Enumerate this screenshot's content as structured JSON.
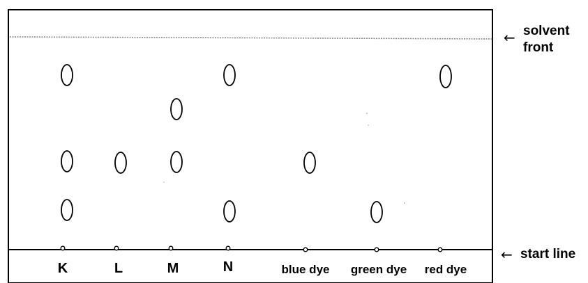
{
  "diagram": {
    "solvent_front_label": [
      "solvent",
      "front"
    ],
    "start_line_label": "start line",
    "arrow_glyph": "←",
    "colors": {
      "ink": "#000000",
      "paper": "#ffffff",
      "front_line": "#8a8a8a"
    },
    "lanes": [
      {
        "id": "K",
        "label": "K",
        "spot_count": 3
      },
      {
        "id": "L",
        "label": "L",
        "spot_count": 1
      },
      {
        "id": "M",
        "label": "M",
        "spot_count": 2
      },
      {
        "id": "N",
        "label": "N",
        "spot_count": 2
      },
      {
        "id": "blue",
        "label": "blue dye",
        "spot_count": 1
      },
      {
        "id": "green",
        "label": "green dye",
        "spot_count": 1
      },
      {
        "id": "red",
        "label": "red dye",
        "spot_count": 1
      }
    ]
  }
}
